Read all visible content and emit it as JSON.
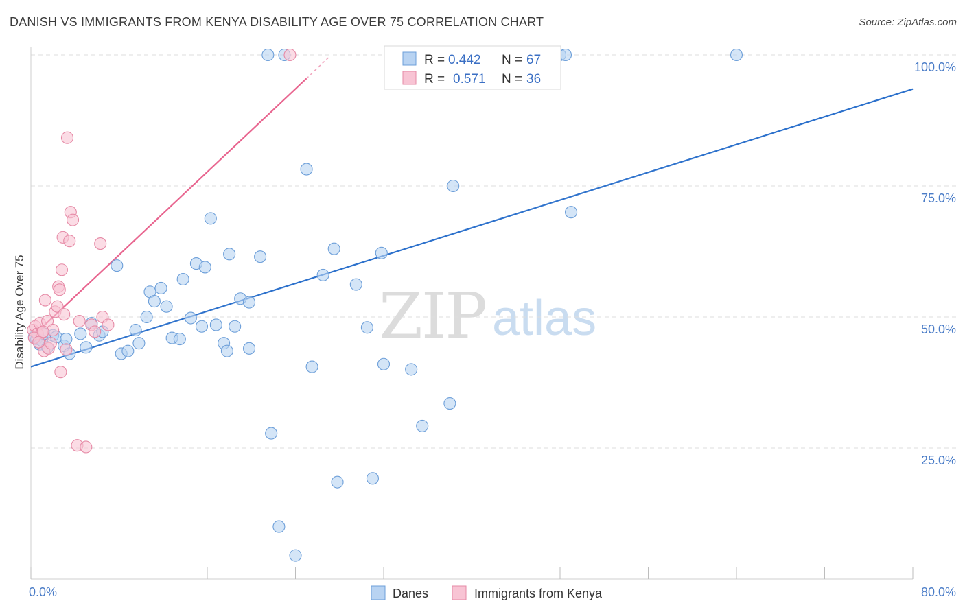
{
  "title": "DANISH VS IMMIGRANTS FROM KENYA DISABILITY AGE OVER 75 CORRELATION CHART",
  "source": "Source: ZipAtlas.com",
  "watermark": {
    "zip": "ZIP",
    "atlas": "atlas"
  },
  "colors": {
    "danes_fill": "#b8d3f2",
    "danes_stroke": "#6d9fd9",
    "danes_line": "#2e72cc",
    "kenya_fill": "#f8c4d4",
    "kenya_stroke": "#e68aa6",
    "kenya_line": "#e8658f",
    "grid": "#dedede",
    "tick_text": "#4a7cc7"
  },
  "legend": {
    "rows": [
      {
        "r_label": "R =",
        "r_value": "0.442",
        "n_label": "N =",
        "n_value": "67"
      },
      {
        "r_label": "R =",
        "r_value": "0.571",
        "n_label": "N =",
        "n_value": "36"
      }
    ]
  },
  "bottom_legend": [
    "Danes",
    "Immigrants from Kenya"
  ],
  "chart_data": {
    "type": "scatter",
    "title": "DANISH VS IMMIGRANTS FROM KENYA DISABILITY AGE OVER 75 CORRELATION CHART",
    "xlabel": "",
    "ylabel": "Disability Age Over 75",
    "xlim": [
      0,
      80
    ],
    "ylim": [
      0,
      100
    ],
    "x_tick_labels": [
      "0.0%",
      "80.0%"
    ],
    "y_ticks": [
      25,
      50,
      75,
      100
    ],
    "y_tick_labels": [
      "25.0%",
      "50.0%",
      "75.0%",
      "100.0%"
    ],
    "grid": true,
    "legend_placement": "top-center",
    "series": [
      {
        "name": "Danes",
        "regression": {
          "x": [
            0,
            80
          ],
          "y": [
            40.5,
            93.5
          ]
        },
        "points": [
          [
            0.3,
            46.2
          ],
          [
            0.5,
            45.8
          ],
          [
            0.8,
            44.8
          ],
          [
            1.0,
            45.5
          ],
          [
            1.2,
            46.8
          ],
          [
            1.5,
            44.2
          ],
          [
            2.0,
            46.5
          ],
          [
            2.3,
            46.2
          ],
          [
            3.0,
            44.5
          ],
          [
            3.2,
            45.8
          ],
          [
            3.5,
            43.0
          ],
          [
            4.5,
            46.8
          ],
          [
            5.0,
            44.2
          ],
          [
            5.5,
            48.8
          ],
          [
            6.2,
            46.5
          ],
          [
            6.5,
            47.2
          ],
          [
            7.8,
            59.8
          ],
          [
            8.2,
            43.0
          ],
          [
            8.8,
            43.5
          ],
          [
            9.5,
            47.5
          ],
          [
            9.8,
            45.0
          ],
          [
            10.5,
            50.0
          ],
          [
            10.8,
            54.8
          ],
          [
            11.2,
            53.0
          ],
          [
            11.8,
            55.5
          ],
          [
            12.3,
            52.0
          ],
          [
            12.8,
            46.0
          ],
          [
            13.5,
            45.8
          ],
          [
            13.8,
            57.2
          ],
          [
            14.5,
            49.8
          ],
          [
            15.0,
            60.2
          ],
          [
            15.5,
            48.2
          ],
          [
            15.8,
            59.5
          ],
          [
            16.3,
            68.8
          ],
          [
            16.8,
            48.5
          ],
          [
            17.5,
            45.0
          ],
          [
            17.8,
            43.5
          ],
          [
            18.0,
            62.0
          ],
          [
            18.5,
            48.2
          ],
          [
            19.0,
            53.5
          ],
          [
            19.8,
            44.0
          ],
          [
            19.8,
            52.8
          ],
          [
            20.8,
            61.5
          ],
          [
            21.8,
            27.8
          ],
          [
            22.5,
            10.0
          ],
          [
            23.0,
            100.0
          ],
          [
            24.0,
            4.5
          ],
          [
            25.0,
            78.2
          ],
          [
            25.5,
            40.5
          ],
          [
            26.5,
            58.0
          ],
          [
            27.5,
            63.0
          ],
          [
            27.8,
            18.5
          ],
          [
            29.5,
            56.2
          ],
          [
            30.5,
            48.0
          ],
          [
            31.0,
            19.2
          ],
          [
            31.8,
            62.2
          ],
          [
            32.0,
            41.0
          ],
          [
            34.5,
            40.0
          ],
          [
            35.5,
            29.2
          ],
          [
            38.0,
            33.5
          ],
          [
            38.3,
            75.0
          ],
          [
            47.5,
            100.0
          ],
          [
            48.0,
            100.0
          ],
          [
            48.5,
            100.0
          ],
          [
            49.0,
            70.0
          ],
          [
            64.0,
            100.0
          ],
          [
            21.5,
            100.0
          ]
        ]
      },
      {
        "name": "Immigrants from Kenya",
        "regression": {
          "x": [
            0,
            25
          ],
          "y": [
            46.0,
            95.5
          ]
        },
        "regression_dashed": {
          "x": [
            25,
            27
          ],
          "y": [
            95.5,
            99.5
          ]
        },
        "points": [
          [
            0.2,
            47.5
          ],
          [
            0.4,
            48.2
          ],
          [
            0.6,
            46.8
          ],
          [
            0.8,
            48.8
          ],
          [
            1.0,
            47.0
          ],
          [
            1.2,
            43.5
          ],
          [
            1.3,
            53.2
          ],
          [
            1.5,
            49.2
          ],
          [
            1.6,
            44.0
          ],
          [
            1.8,
            45.0
          ],
          [
            2.0,
            47.5
          ],
          [
            2.2,
            51.0
          ],
          [
            2.4,
            52.0
          ],
          [
            2.5,
            55.8
          ],
          [
            2.6,
            55.2
          ],
          [
            2.7,
            39.5
          ],
          [
            2.8,
            59.0
          ],
          [
            2.9,
            65.2
          ],
          [
            3.0,
            50.5
          ],
          [
            3.2,
            43.8
          ],
          [
            3.3,
            84.2
          ],
          [
            3.5,
            64.5
          ],
          [
            3.6,
            70.0
          ],
          [
            3.8,
            68.5
          ],
          [
            4.2,
            25.5
          ],
          [
            4.4,
            49.2
          ],
          [
            5.0,
            25.2
          ],
          [
            5.5,
            48.5
          ],
          [
            5.8,
            47.2
          ],
          [
            6.3,
            64.0
          ],
          [
            6.5,
            50.0
          ],
          [
            7.0,
            48.5
          ],
          [
            23.5,
            100.0
          ],
          [
            0.3,
            46.0
          ],
          [
            1.1,
            47.2
          ],
          [
            0.7,
            45.2
          ]
        ]
      }
    ]
  }
}
